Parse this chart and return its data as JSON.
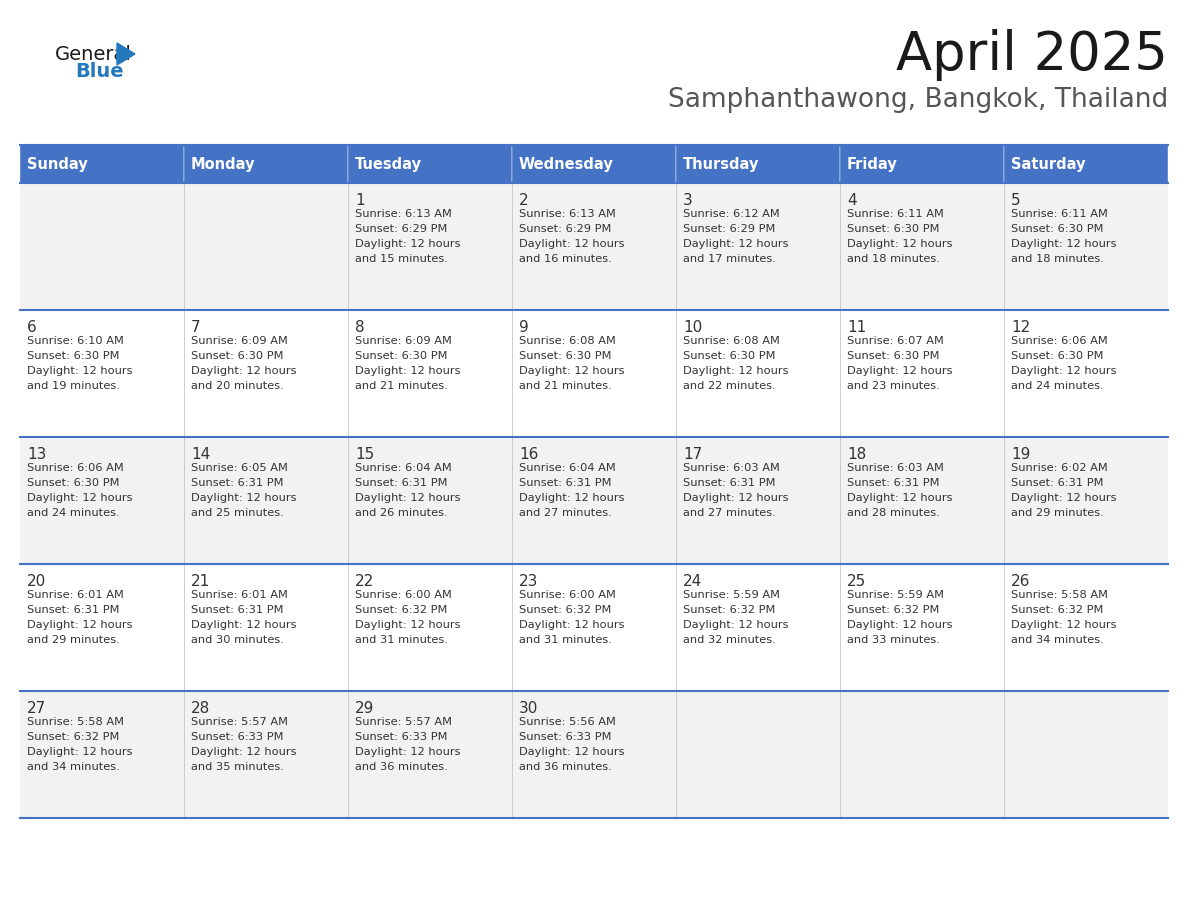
{
  "title": "April 2025",
  "subtitle": "Samphanthawong, Bangkok, Thailand",
  "header_bg_color": "#4472C4",
  "header_text_color": "#FFFFFF",
  "days_of_week": [
    "Sunday",
    "Monday",
    "Tuesday",
    "Wednesday",
    "Thursday",
    "Friday",
    "Saturday"
  ],
  "row_bg_colors": [
    "#F2F2F2",
    "#FFFFFF"
  ],
  "cell_border_color": "#4472C4",
  "text_color": "#333333",
  "calendar_data": [
    [
      {
        "day": "",
        "sunrise": "",
        "sunset": "",
        "daylight_min": null
      },
      {
        "day": "",
        "sunrise": "",
        "sunset": "",
        "daylight_min": null
      },
      {
        "day": "1",
        "sunrise": "6:13 AM",
        "sunset": "6:29 PM",
        "daylight_min": 15
      },
      {
        "day": "2",
        "sunrise": "6:13 AM",
        "sunset": "6:29 PM",
        "daylight_min": 16
      },
      {
        "day": "3",
        "sunrise": "6:12 AM",
        "sunset": "6:29 PM",
        "daylight_min": 17
      },
      {
        "day": "4",
        "sunrise": "6:11 AM",
        "sunset": "6:30 PM",
        "daylight_min": 18
      },
      {
        "day": "5",
        "sunrise": "6:11 AM",
        "sunset": "6:30 PM",
        "daylight_min": 18
      }
    ],
    [
      {
        "day": "6",
        "sunrise": "6:10 AM",
        "sunset": "6:30 PM",
        "daylight_min": 19
      },
      {
        "day": "7",
        "sunrise": "6:09 AM",
        "sunset": "6:30 PM",
        "daylight_min": 20
      },
      {
        "day": "8",
        "sunrise": "6:09 AM",
        "sunset": "6:30 PM",
        "daylight_min": 21
      },
      {
        "day": "9",
        "sunrise": "6:08 AM",
        "sunset": "6:30 PM",
        "daylight_min": 21
      },
      {
        "day": "10",
        "sunrise": "6:08 AM",
        "sunset": "6:30 PM",
        "daylight_min": 22
      },
      {
        "day": "11",
        "sunrise": "6:07 AM",
        "sunset": "6:30 PM",
        "daylight_min": 23
      },
      {
        "day": "12",
        "sunrise": "6:06 AM",
        "sunset": "6:30 PM",
        "daylight_min": 24
      }
    ],
    [
      {
        "day": "13",
        "sunrise": "6:06 AM",
        "sunset": "6:30 PM",
        "daylight_min": 24
      },
      {
        "day": "14",
        "sunrise": "6:05 AM",
        "sunset": "6:31 PM",
        "daylight_min": 25
      },
      {
        "day": "15",
        "sunrise": "6:04 AM",
        "sunset": "6:31 PM",
        "daylight_min": 26
      },
      {
        "day": "16",
        "sunrise": "6:04 AM",
        "sunset": "6:31 PM",
        "daylight_min": 27
      },
      {
        "day": "17",
        "sunrise": "6:03 AM",
        "sunset": "6:31 PM",
        "daylight_min": 27
      },
      {
        "day": "18",
        "sunrise": "6:03 AM",
        "sunset": "6:31 PM",
        "daylight_min": 28
      },
      {
        "day": "19",
        "sunrise": "6:02 AM",
        "sunset": "6:31 PM",
        "daylight_min": 29
      }
    ],
    [
      {
        "day": "20",
        "sunrise": "6:01 AM",
        "sunset": "6:31 PM",
        "daylight_min": 29
      },
      {
        "day": "21",
        "sunrise": "6:01 AM",
        "sunset": "6:31 PM",
        "daylight_min": 30
      },
      {
        "day": "22",
        "sunrise": "6:00 AM",
        "sunset": "6:32 PM",
        "daylight_min": 31
      },
      {
        "day": "23",
        "sunrise": "6:00 AM",
        "sunset": "6:32 PM",
        "daylight_min": 31
      },
      {
        "day": "24",
        "sunrise": "5:59 AM",
        "sunset": "6:32 PM",
        "daylight_min": 32
      },
      {
        "day": "25",
        "sunrise": "5:59 AM",
        "sunset": "6:32 PM",
        "daylight_min": 33
      },
      {
        "day": "26",
        "sunrise": "5:58 AM",
        "sunset": "6:32 PM",
        "daylight_min": 34
      }
    ],
    [
      {
        "day": "27",
        "sunrise": "5:58 AM",
        "sunset": "6:32 PM",
        "daylight_min": 34
      },
      {
        "day": "28",
        "sunrise": "5:57 AM",
        "sunset": "6:33 PM",
        "daylight_min": 35
      },
      {
        "day": "29",
        "sunrise": "5:57 AM",
        "sunset": "6:33 PM",
        "daylight_min": 36
      },
      {
        "day": "30",
        "sunrise": "5:56 AM",
        "sunset": "6:33 PM",
        "daylight_min": 36
      },
      {
        "day": "",
        "sunrise": "",
        "sunset": "",
        "daylight_min": null
      },
      {
        "day": "",
        "sunrise": "",
        "sunset": "",
        "daylight_min": null
      },
      {
        "day": "",
        "sunrise": "",
        "sunset": "",
        "daylight_min": null
      }
    ]
  ],
  "logo_color_general": "#1a1a1a",
  "logo_color_blue": "#2479BD",
  "logo_triangle_color": "#2479BD",
  "title_fontsize": 38,
  "subtitle_fontsize": 19,
  "fig_width": 11.88,
  "fig_height": 9.18,
  "dpi": 100
}
